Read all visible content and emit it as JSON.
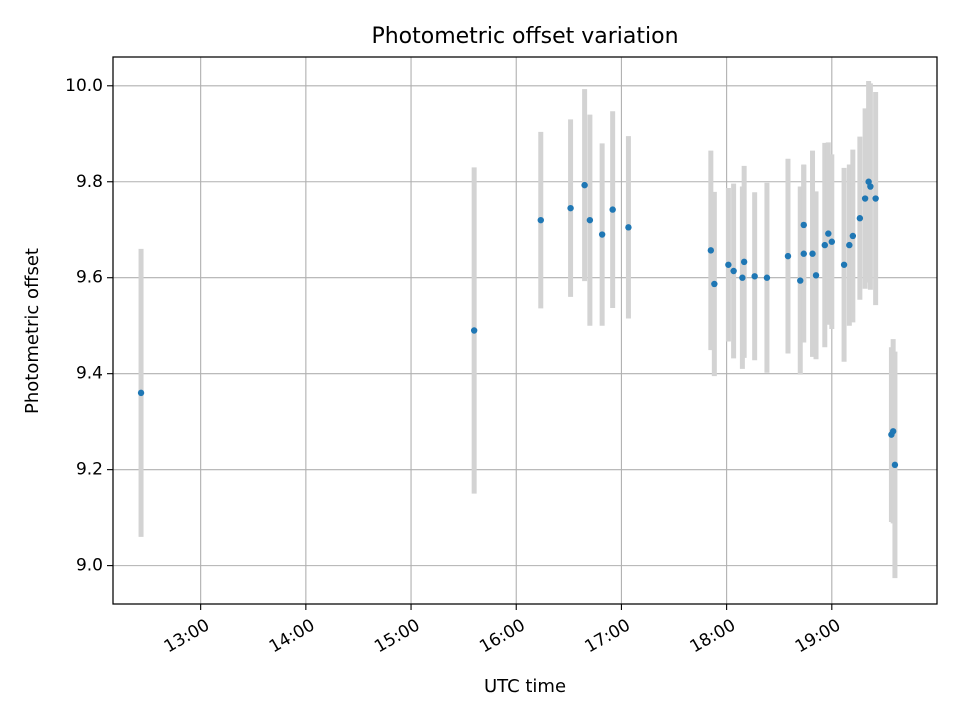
{
  "chart_data": {
    "type": "scatter",
    "title": "Photometric offset variation",
    "xlabel": "UTC time",
    "ylabel": "Photometric offset",
    "x_unit": "UTC clock time (HH:MM)",
    "xlim": [
      "12:10",
      "20:00"
    ],
    "ylim": [
      8.92,
      10.06
    ],
    "xticks": [
      "13:00",
      "14:00",
      "15:00",
      "16:00",
      "17:00",
      "18:00",
      "19:00"
    ],
    "yticks": [
      9.0,
      9.2,
      9.4,
      9.6,
      9.8,
      10.0
    ],
    "ytick_labels": [
      "9.0",
      "9.2",
      "9.4",
      "9.6",
      "9.8",
      "10.0"
    ],
    "grid": true,
    "colors": {
      "points": "#1f77b4",
      "errorbars": "#d3d3d3",
      "grid": "#b0b0b0"
    },
    "series": [
      {
        "x": [
          "12:26",
          "15:36",
          "16:14",
          "16:31",
          "16:39",
          "16:42",
          "16:49",
          "16:55",
          "17:04",
          "17:51",
          "17:53",
          "18:01",
          "18:04",
          "18:09",
          "18:10",
          "18:16",
          "18:23",
          "18:35",
          "18:42",
          "18:44",
          "18:44",
          "18:49",
          "18:51",
          "18:56",
          "18:58",
          "19:00",
          "19:07",
          "19:10",
          "19:12",
          "19:16",
          "19:19",
          "19:21",
          "19:22",
          "19:25",
          "19:34",
          "19:35",
          "19:36"
        ],
        "y": [
          9.36,
          9.49,
          9.72,
          9.745,
          9.793,
          9.72,
          9.69,
          9.742,
          9.705,
          9.657,
          9.587,
          9.627,
          9.614,
          9.6,
          9.633,
          9.603,
          9.6,
          9.645,
          9.594,
          9.65,
          9.71,
          9.65,
          9.605,
          9.668,
          9.692,
          9.675,
          9.627,
          9.668,
          9.687,
          9.724,
          9.765,
          9.8,
          9.79,
          9.765,
          9.273,
          9.28,
          9.21
        ],
        "yerr": [
          0.3,
          0.34,
          0.184,
          0.185,
          0.2,
          0.22,
          0.19,
          0.205,
          0.19,
          0.208,
          0.192,
          0.16,
          0.182,
          0.19,
          0.2,
          0.175,
          0.198,
          0.203,
          0.196,
          0.185,
          0.126,
          0.215,
          0.175,
          0.213,
          0.19,
          0.182,
          0.202,
          0.168,
          0.18,
          0.17,
          0.188,
          0.21,
          0.215,
          0.222,
          0.182,
          0.192,
          0.236
        ]
      }
    ]
  }
}
